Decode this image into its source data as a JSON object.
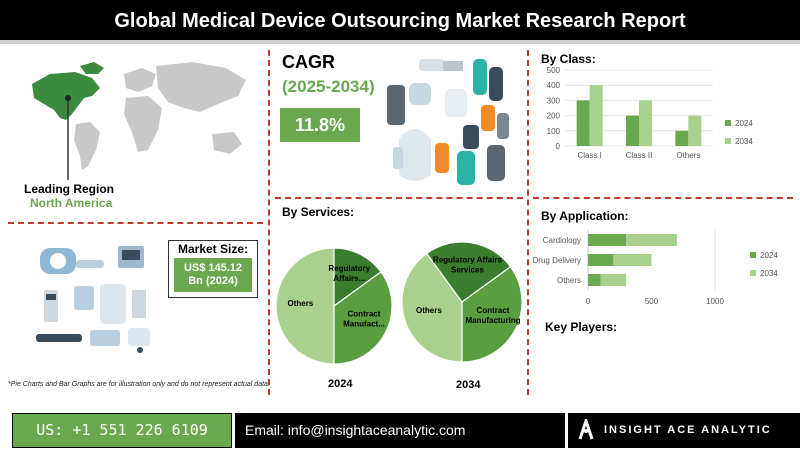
{
  "header": {
    "title": "Global Medical Device Outsourcing Market Research Report"
  },
  "region": {
    "label": "Leading Region",
    "value": "North America"
  },
  "market_size": {
    "label": "Market Size:",
    "value_line1": "US$ 145.12",
    "value_line2": "Bn (2024)"
  },
  "cagr": {
    "label": "CAGR",
    "period": "(2025-2034)",
    "value": "11.8%"
  },
  "services": {
    "heading": "By Services:"
  },
  "class_section": {
    "heading": "By Class:"
  },
  "application_section": {
    "heading": "By Application:"
  },
  "key_players": {
    "heading": "Key Players:"
  },
  "disclaimer": "*Pie Charts and Bar Graphs are for illustration only and do not represent actual data.",
  "footer": {
    "phone": "US: +1 551 226 6109",
    "email": "Email: info@insightaceanalytic.com",
    "brand": "INSIGHT ACE ANALYTIC"
  },
  "colors": {
    "dark_green": "#6aa84f",
    "light_green": "#a9d18e",
    "map_highlight": "#3b8a3e",
    "map_base": "#c8c8c8",
    "divider": "#c0392b"
  },
  "icons": [
    "device-illustration-icon",
    "medical-equipment-icon",
    "world-map-icon",
    "insight-ace-logo-icon"
  ],
  "chart_data": [
    {
      "type": "bar",
      "title": "By Class:",
      "categories": [
        "Class I",
        "Class II",
        "Others"
      ],
      "series": [
        {
          "name": "2024",
          "values": [
            300,
            200,
            100
          ],
          "color": "#6aa84f"
        },
        {
          "name": "2034",
          "values": [
            400,
            300,
            200
          ],
          "color": "#a9d18e"
        }
      ],
      "ylim": [
        0,
        500
      ],
      "yticks": [
        0,
        100,
        200,
        300,
        400,
        500
      ],
      "legend": "right"
    },
    {
      "type": "bar",
      "orientation": "horizontal",
      "title": "By Application:",
      "categories": [
        "Cardiology",
        "Drug Delivery",
        "Others"
      ],
      "series": [
        {
          "name": "2024",
          "values": [
            300,
            200,
            100
          ],
          "color": "#6aa84f"
        },
        {
          "name": "2034",
          "values": [
            400,
            300,
            200
          ],
          "color": "#a9d18e"
        }
      ],
      "xlim": [
        0,
        1000
      ],
      "xticks": [
        0,
        500,
        1000
      ],
      "legend": "right"
    },
    {
      "type": "pie",
      "title": "2024",
      "slices": [
        {
          "label": "Others",
          "value": 50,
          "color": "#a9d18e"
        },
        {
          "label": "Regulatory Affairs...",
          "value": 15,
          "color": "#3b7d2e"
        },
        {
          "label": "Contract Manufact...",
          "value": 35,
          "color": "#5a9e3f"
        }
      ]
    },
    {
      "type": "pie",
      "title": "2034",
      "slices": [
        {
          "label": "Others",
          "value": 40,
          "color": "#a9d18e"
        },
        {
          "label": "Regulatory Affairs Services",
          "value": 25,
          "color": "#3b7d2e"
        },
        {
          "label": "Contract Manufacturing",
          "value": 35,
          "color": "#5a9e3f"
        }
      ]
    }
  ]
}
